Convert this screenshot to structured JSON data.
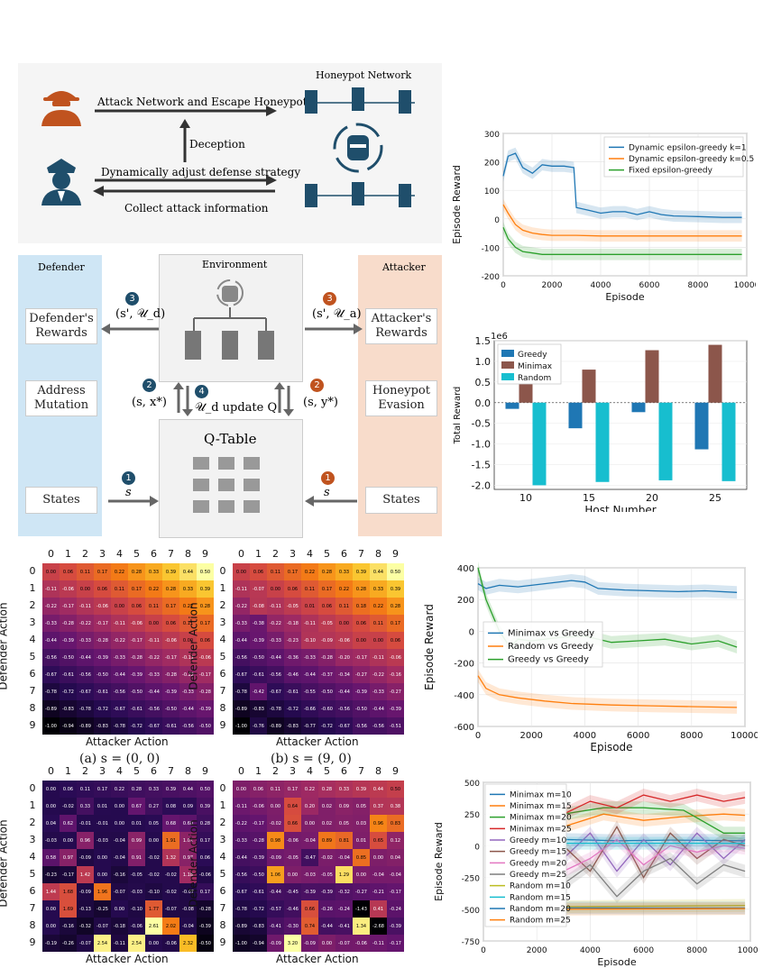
{
  "diagram": {
    "honeypot_network": "Honeypot Network",
    "arrow_attack": "Attack Network and Escape Honeypot",
    "arrow_deception": "Deception",
    "arrow_adjust": "Dynamically adjust defense strategy",
    "arrow_collect": "Collect attack information",
    "defender_title": "Defender",
    "attacker_title": "Attacker",
    "environment_title": "Environment",
    "qtable_title": "Q-Table",
    "def_rewards": "Defender's Rewards",
    "att_rewards": "Attacker's Rewards",
    "address_mutation": "Address Mutation",
    "honeypot_evasion": "Honeypot Evasion",
    "states_left": "States",
    "states_right": "States",
    "step3_left": "(s', 𝒰_d)",
    "step3_right": "(s', 𝒰_a)",
    "step2_left": "(s, x*)",
    "step2_right": "(s, y*)",
    "step4": "𝒰_d update Q",
    "step1_left": "s",
    "step1_right": "s",
    "num1": "1",
    "num2": "2",
    "num3": "3",
    "num4": "4",
    "colors": {
      "defender_bg": "#cfe6f5",
      "attacker_bg": "#f8dccb",
      "navy": "#1f4e6b",
      "orange": "#c0531f"
    }
  },
  "heatmaps": {
    "ticks": [
      "0",
      "1",
      "2",
      "3",
      "4",
      "5",
      "6",
      "7",
      "8",
      "9"
    ],
    "xlabel": "Attacker Action",
    "ylabel": "Defender Action",
    "caption_a": "(a) s = (0, 0)",
    "caption_b": "(b) s = (9, 0)",
    "a": [
      [
        "0.00",
        "0.06",
        "0.11",
        "0.17",
        "0.22",
        "0.28",
        "0.33",
        "0.39",
        "0.44",
        "0.50"
      ],
      [
        "-0.11",
        "-0.06",
        "0.00",
        "0.06",
        "0.11",
        "0.17",
        "0.22",
        "0.28",
        "0.33",
        "0.39"
      ],
      [
        "-0.22",
        "-0.17",
        "-0.11",
        "-0.06",
        "0.00",
        "0.06",
        "0.11",
        "0.17",
        "0.22",
        "0.28"
      ],
      [
        "-0.33",
        "-0.28",
        "-0.22",
        "-0.17",
        "-0.11",
        "-0.06",
        "0.00",
        "0.06",
        "0.11",
        "0.17"
      ],
      [
        "-0.44",
        "-0.39",
        "-0.33",
        "-0.28",
        "-0.22",
        "-0.17",
        "-0.11",
        "-0.06",
        "0.00",
        "0.06"
      ],
      [
        "-0.56",
        "-0.50",
        "-0.44",
        "-0.39",
        "-0.33",
        "-0.28",
        "-0.22",
        "-0.17",
        "-0.11",
        "-0.06"
      ],
      [
        "-0.67",
        "-0.61",
        "-0.56",
        "-0.50",
        "-0.44",
        "-0.39",
        "-0.33",
        "-0.28",
        "-0.22",
        "-0.17"
      ],
      [
        "-0.78",
        "-0.72",
        "-0.67",
        "-0.61",
        "-0.56",
        "-0.50",
        "-0.44",
        "-0.39",
        "-0.33",
        "-0.28"
      ],
      [
        "-0.89",
        "-0.83",
        "-0.78",
        "-0.72",
        "-0.67",
        "-0.61",
        "-0.56",
        "-0.50",
        "-0.44",
        "-0.39"
      ],
      [
        "-1.00",
        "-0.94",
        "-0.89",
        "-0.83",
        "-0.78",
        "-0.72",
        "-0.67",
        "-0.61",
        "-0.56",
        "-0.50"
      ]
    ],
    "b": [
      [
        "0.00",
        "0.06",
        "0.11",
        "0.17",
        "0.22",
        "0.28",
        "0.33",
        "0.39",
        "0.44",
        "0.50"
      ],
      [
        "-0.11",
        "-0.07",
        "0.00",
        "0.06",
        "0.11",
        "0.17",
        "0.22",
        "0.28",
        "0.33",
        "0.39"
      ],
      [
        "-0.22",
        "-0.08",
        "-0.11",
        "-0.05",
        "0.01",
        "0.06",
        "0.11",
        "0.18",
        "0.22",
        "0.28"
      ],
      [
        "-0.33",
        "-0.38",
        "-0.22",
        "-0.18",
        "-0.11",
        "-0.05",
        "0.00",
        "0.06",
        "0.11",
        "0.17"
      ],
      [
        "-0.44",
        "-0.39",
        "-0.33",
        "-0.23",
        "-0.10",
        "-0.09",
        "-0.06",
        "0.00",
        "0.00",
        "0.06"
      ],
      [
        "-0.56",
        "-0.50",
        "-0.44",
        "-0.36",
        "-0.33",
        "-0.28",
        "-0.20",
        "-0.17",
        "-0.11",
        "-0.06"
      ],
      [
        "-0.67",
        "-0.61",
        "-0.56",
        "-0.46",
        "-0.44",
        "-0.37",
        "-0.34",
        "-0.27",
        "-0.22",
        "-0.16"
      ],
      [
        "-0.78",
        "-0.42",
        "-0.67",
        "-0.61",
        "-0.55",
        "-0.50",
        "-0.44",
        "-0.39",
        "-0.33",
        "-0.27"
      ],
      [
        "-0.89",
        "-0.83",
        "-0.78",
        "-0.72",
        "-0.66",
        "-0.60",
        "-0.56",
        "-0.50",
        "-0.44",
        "-0.39"
      ],
      [
        "-1.00",
        "-0.76",
        "-0.89",
        "-0.83",
        "-0.77",
        "-0.72",
        "-0.67",
        "-0.56",
        "-0.56",
        "-0.51"
      ]
    ],
    "c": [
      [
        "0.00",
        "0.06",
        "0.11",
        "0.17",
        "0.22",
        "0.28",
        "0.33",
        "0.39",
        "0.44",
        "0.50"
      ],
      [
        "0.00",
        "-0.02",
        "0.33",
        "0.01",
        "0.00",
        "0.67",
        "0.27",
        "0.08",
        "0.09",
        "0.39"
      ],
      [
        "0.04",
        "0.62",
        "-0.01",
        "-0.01",
        "0.00",
        "0.01",
        "0.05",
        "0.68",
        "0.60",
        "0.28"
      ],
      [
        "-0.03",
        "0.00",
        "0.96",
        "-0.03",
        "-0.04",
        "0.99",
        "0.00",
        "1.91",
        "1.01",
        "0.17"
      ],
      [
        "0.58",
        "0.97",
        "-0.09",
        "0.00",
        "-0.04",
        "0.91",
        "-0.02",
        "1.32",
        "0.97",
        "0.06"
      ],
      [
        "-0.23",
        "-0.17",
        "1.42",
        "0.00",
        "-0.16",
        "-0.05",
        "-0.02",
        "-0.02",
        "1.18",
        "-0.06"
      ],
      [
        "1.44",
        "1.68",
        "-0.09",
        "1.96",
        "-0.07",
        "-0.03",
        "-0.10",
        "-0.02",
        "-0.07",
        "0.17"
      ],
      [
        "0.00",
        "1.69",
        "-0.13",
        "-0.25",
        "0.00",
        "-0.10",
        "1.77",
        "-0.07",
        "-0.08",
        "-0.28"
      ],
      [
        "0.00",
        "-0.16",
        "-0.32",
        "-0.07",
        "-0.18",
        "-0.06",
        "2.61",
        "2.02",
        "-0.04",
        "-0.39"
      ],
      [
        "-0.19",
        "-0.26",
        "-0.07",
        "2.54",
        "-0.11",
        "2.54",
        "0.00",
        "-0.06",
        "2.32",
        "-0.50"
      ]
    ],
    "d": [
      [
        "0.00",
        "0.06",
        "0.11",
        "0.17",
        "0.22",
        "0.28",
        "0.33",
        "0.39",
        "0.44",
        "0.50"
      ],
      [
        "-0.11",
        "-0.06",
        "0.00",
        "0.64",
        "0.20",
        "0.02",
        "0.09",
        "0.05",
        "0.37",
        "0.38"
      ],
      [
        "-0.22",
        "-0.17",
        "-0.02",
        "0.66",
        "0.00",
        "0.02",
        "0.05",
        "0.03",
        "0.96",
        "0.83"
      ],
      [
        "-0.33",
        "-0.28",
        "0.98",
        "-0.06",
        "-0.04",
        "0.89",
        "0.81",
        "0.01",
        "0.65",
        "0.12"
      ],
      [
        "-0.44",
        "-0.39",
        "-0.09",
        "-0.05",
        "-0.47",
        "-0.02",
        "-0.04",
        "0.85",
        "0.00",
        "0.04"
      ],
      [
        "-0.56",
        "-0.50",
        "1.06",
        "0.00",
        "-0.03",
        "-0.05",
        "1.29",
        "0.00",
        "-0.04",
        "-0.04"
      ],
      [
        "-0.67",
        "-0.61",
        "-0.44",
        "-0.45",
        "-0.39",
        "-0.39",
        "-0.32",
        "-0.27",
        "-0.21",
        "-0.17"
      ],
      [
        "-0.78",
        "-0.72",
        "-0.57",
        "-0.46",
        "0.66",
        "-0.26",
        "-0.24",
        "-1.43",
        "0.41",
        "-0.24"
      ],
      [
        "-0.89",
        "-0.83",
        "-0.41",
        "-0.30",
        "0.74",
        "-0.44",
        "-0.41",
        "1.34",
        "-2.68",
        "-0.39"
      ],
      [
        "-1.00",
        "-0.94",
        "-0.09",
        "3.20",
        "-0.09",
        "0.00",
        "-0.07",
        "-0.06",
        "-0.11",
        "-0.17"
      ]
    ]
  },
  "chart_data": [
    {
      "type": "line",
      "xlabel": "Episode",
      "ylabel": "Episode Reward",
      "ylim": [
        -200,
        300
      ],
      "xlim": [
        0,
        10000
      ],
      "xticks": [
        "0",
        "2000",
        "4000",
        "6000",
        "8000",
        "10000"
      ],
      "yticks": [
        "300",
        "200",
        "100",
        "0",
        "-100",
        "-200"
      ],
      "legend_position": "top-right",
      "series": [
        {
          "name": "Dynamic epsilon-greedy k=1",
          "color": "#1f77b4",
          "x": [
            0,
            200,
            500,
            800,
            1200,
            1600,
            2000,
            2500,
            2900,
            3000,
            3500,
            4000,
            4500,
            5000,
            5500,
            6000,
            6500,
            7000,
            8000,
            9000,
            9800
          ],
          "y": [
            150,
            220,
            230,
            180,
            160,
            190,
            185,
            185,
            180,
            40,
            30,
            20,
            25,
            25,
            15,
            25,
            15,
            10,
            8,
            5,
            5
          ]
        },
        {
          "name": "Dynamic epsilon-greedy k=0.5",
          "color": "#ff7f0e",
          "x": [
            0,
            200,
            500,
            800,
            1200,
            1600,
            2000,
            3000,
            4000,
            5000,
            6000,
            7000,
            8000,
            9000,
            9800
          ],
          "y": [
            50,
            20,
            -20,
            -40,
            -50,
            -55,
            -58,
            -58,
            -60,
            -60,
            -60,
            -60,
            -60,
            -60,
            -60
          ]
        },
        {
          "name": "Fixed epsilon-greedy",
          "color": "#2ca02c",
          "x": [
            0,
            200,
            500,
            800,
            1200,
            1600,
            2000,
            3000,
            4000,
            5000,
            6000,
            7000,
            8000,
            9000,
            9800
          ],
          "y": [
            -30,
            -70,
            -100,
            -115,
            -120,
            -125,
            -125,
            -125,
            -125,
            -125,
            -125,
            -125,
            -125,
            -125,
            -125
          ]
        }
      ]
    },
    {
      "type": "bar",
      "xlabel": "Host Number",
      "ylabel": "Total Reward",
      "scale_label": "1e6",
      "ylim": [
        -2.1,
        1.5
      ],
      "yticks": [
        "1.5",
        "1.0",
        "0.5",
        "0.0",
        "-0.5",
        "-1.0",
        "-1.5",
        "-2.0"
      ],
      "categories": [
        "10",
        "15",
        "20",
        "25"
      ],
      "legend_position": "top-left",
      "series": [
        {
          "name": "Greedy",
          "color": "#1f77b4",
          "values": [
            -0.15,
            -0.62,
            -0.23,
            -1.13
          ]
        },
        {
          "name": "Minimax",
          "color": "#8c564b",
          "values": [
            0.57,
            0.8,
            1.27,
            1.4
          ]
        },
        {
          "name": "Random",
          "color": "#17becf",
          "values": [
            -2.0,
            -1.92,
            -1.88,
            -1.9
          ]
        }
      ]
    },
    {
      "type": "line",
      "xlabel": "Episode",
      "ylabel": "Episode Reward",
      "ylim": [
        -600,
        400
      ],
      "xlim": [
        0,
        10000
      ],
      "xticks": [
        "0",
        "2000",
        "4000",
        "6000",
        "8000",
        "10000"
      ],
      "yticks": [
        "400",
        "200",
        "0",
        "-200",
        "-400",
        "-600"
      ],
      "legend_position": "center-left",
      "series": [
        {
          "name": "Minimax vs Greedy",
          "color": "#1f77b4",
          "x": [
            0,
            300,
            800,
            1500,
            2500,
            3500,
            4000,
            4500,
            5500,
            6500,
            7500,
            8500,
            9700
          ],
          "y": [
            300,
            270,
            290,
            280,
            300,
            320,
            310,
            270,
            260,
            255,
            250,
            255,
            245
          ]
        },
        {
          "name": "Random vs Greedy",
          "color": "#ff7f0e",
          "x": [
            0,
            300,
            800,
            1500,
            2500,
            3500,
            5000,
            6500,
            8000,
            9700
          ],
          "y": [
            -280,
            -360,
            -400,
            -420,
            -440,
            -455,
            -465,
            -470,
            -475,
            -480
          ]
        },
        {
          "name": "Greedy vs Greedy",
          "color": "#2ca02c",
          "x": [
            0,
            300,
            800,
            1200,
            1500,
            2000,
            3000,
            4000,
            5000,
            6000,
            7000,
            8000,
            9000,
            9700
          ],
          "y": [
            400,
            200,
            0,
            -100,
            -50,
            -60,
            -40,
            -30,
            -70,
            -60,
            -50,
            -80,
            -60,
            -100
          ]
        }
      ]
    },
    {
      "type": "line",
      "xlabel": "Episode",
      "ylabel": "Episode Reward",
      "ylim": [
        -750,
        500
      ],
      "xlim": [
        0,
        10000
      ],
      "xticks": [
        "0",
        "2000",
        "4000",
        "6000",
        "8000",
        "10000"
      ],
      "yticks": [
        "500",
        "250",
        "0",
        "-250",
        "-500",
        "-750"
      ],
      "legend_position": "top-left",
      "series": [
        {
          "name": "Minimax m=10",
          "color": "#1f77b4",
          "x": [
            3000,
            5000,
            7000,
            9800
          ],
          "y": [
            50,
            40,
            45,
            40
          ]
        },
        {
          "name": "Minimax m=15",
          "color": "#ff7f0e",
          "x": [
            3000,
            4500,
            6000,
            7500,
            9000,
            9800
          ],
          "y": [
            150,
            250,
            200,
            230,
            250,
            240
          ]
        },
        {
          "name": "Minimax m=20",
          "color": "#2ca02c",
          "x": [
            3000,
            4500,
            6000,
            7500,
            9000,
            9800
          ],
          "y": [
            250,
            300,
            300,
            280,
            100,
            100
          ]
        },
        {
          "name": "Minimax m=25",
          "color": "#d62728",
          "x": [
            3000,
            4000,
            5000,
            6000,
            7000,
            8000,
            9000,
            9800
          ],
          "y": [
            250,
            350,
            300,
            400,
            350,
            400,
            350,
            380
          ]
        },
        {
          "name": "Greedy m=10",
          "color": "#9467bd",
          "x": [
            3000,
            4000,
            5000,
            6000,
            7000,
            8000,
            9000,
            9800
          ],
          "y": [
            -100,
            100,
            -200,
            50,
            -150,
            100,
            -100,
            50
          ]
        },
        {
          "name": "Greedy m=15",
          "color": "#8c564b",
          "x": [
            3000,
            4000,
            5000,
            6000,
            7000,
            8000,
            9000,
            9800
          ],
          "y": [
            0,
            -200,
            150,
            -250,
            100,
            -100,
            50,
            0
          ]
        },
        {
          "name": "Greedy m=20",
          "color": "#e377c2",
          "x": [
            3000,
            4000,
            5000,
            6000,
            7000,
            8000,
            9000,
            9800
          ],
          "y": [
            -200,
            -100,
            50,
            -150,
            0,
            -50,
            0,
            -20
          ]
        },
        {
          "name": "Greedy m=25",
          "color": "#7f7f7f",
          "x": [
            3000,
            4000,
            5000,
            6000,
            7000,
            8000,
            9000,
            9800
          ],
          "y": [
            -300,
            -150,
            -400,
            -200,
            -100,
            -300,
            -150,
            -200
          ]
        },
        {
          "name": "Random m=10",
          "color": "#bcbd22",
          "x": [
            3000,
            9800
          ],
          "y": [
            -480,
            -470
          ]
        },
        {
          "name": "Random m=15",
          "color": "#17becf",
          "x": [
            3000,
            9800
          ],
          "y": [
            20,
            20
          ]
        },
        {
          "name": "Random m=20",
          "color": "#1f77b4",
          "x": [
            3000,
            9800
          ],
          "y": [
            -490,
            -490
          ]
        },
        {
          "name": "Random m=25",
          "color": "#ff7f0e",
          "x": [
            3000,
            9800
          ],
          "y": [
            -500,
            -495
          ]
        }
      ]
    }
  ]
}
